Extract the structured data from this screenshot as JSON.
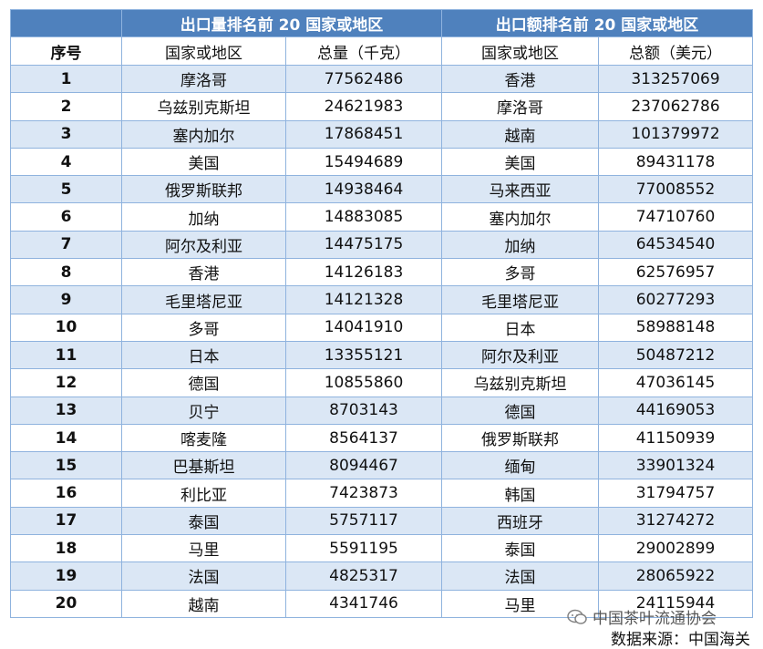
{
  "table": {
    "group_headers": [
      "出口量排名前 20 国家或地区",
      "出口额排名前 20 国家或地区"
    ],
    "columns": [
      "序号",
      "国家或地区",
      "总量（千克）",
      "国家或地区",
      "总额（美元）"
    ],
    "rows": [
      [
        "1",
        "摩洛哥",
        "77562486",
        "香港",
        "313257069"
      ],
      [
        "2",
        "乌兹别克斯坦",
        "24621983",
        "摩洛哥",
        "237062786"
      ],
      [
        "3",
        "塞内加尔",
        "17868451",
        "越南",
        "101379972"
      ],
      [
        "4",
        "美国",
        "15494689",
        "美国",
        "89431178"
      ],
      [
        "5",
        "俄罗斯联邦",
        "14938464",
        "马来西亚",
        "77008552"
      ],
      [
        "6",
        "加纳",
        "14883085",
        "塞内加尔",
        "74710760"
      ],
      [
        "7",
        "阿尔及利亚",
        "14475175",
        "加纳",
        "64534540"
      ],
      [
        "8",
        "香港",
        "14126183",
        "多哥",
        "62576957"
      ],
      [
        "9",
        "毛里塔尼亚",
        "14121328",
        "毛里塔尼亚",
        "60277293"
      ],
      [
        "10",
        "多哥",
        "14041910",
        "日本",
        "58988148"
      ],
      [
        "11",
        "日本",
        "13355121",
        "阿尔及利亚",
        "50487212"
      ],
      [
        "12",
        "德国",
        "10855860",
        "乌兹别克斯坦",
        "47036145"
      ],
      [
        "13",
        "贝宁",
        "8703143",
        "德国",
        "44169053"
      ],
      [
        "14",
        "喀麦隆",
        "8564137",
        "俄罗斯联邦",
        "41150939"
      ],
      [
        "15",
        "巴基斯坦",
        "8094467",
        "缅甸",
        "33901324"
      ],
      [
        "16",
        "利比亚",
        "7423873",
        "韩国",
        "31794757"
      ],
      [
        "17",
        "泰国",
        "5757117",
        "西班牙",
        "31274272"
      ],
      [
        "18",
        "马里",
        "5591195",
        "泰国",
        "29002899"
      ],
      [
        "19",
        "法国",
        "4825317",
        "法国",
        "28065922"
      ],
      [
        "20",
        "越南",
        "4341746",
        "马里",
        "24115944"
      ]
    ]
  },
  "watermark": {
    "icon": "wechat-icon",
    "text": "中国茶叶流通协会"
  },
  "source": "数据来源：中国海关",
  "colors": {
    "header_band": "#4f81bd",
    "stripe": "#dbe7f5",
    "border": "#8fb3de"
  }
}
